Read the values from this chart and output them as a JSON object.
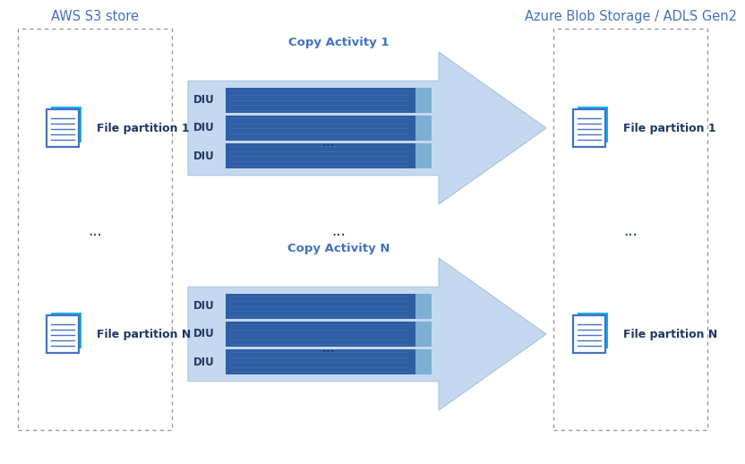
{
  "title_left": "AWS S3 store",
  "title_right": "Azure Blob Storage / ADLS Gen2",
  "copy_activity_1": "Copy Activity 1",
  "copy_activity_n": "Copy Activity N",
  "file_partition_1": "File partition 1",
  "file_partition_n": "File partition N",
  "ellipsis": "...",
  "diu_label": "DIU",
  "bg_color": "#ffffff",
  "arrow_fill": "#c5d8f0",
  "arrow_edge": "#a8c4e0",
  "bar_light": "#7bafd4",
  "bar_dark": "#2e5fa3",
  "bar_lines": "#1e3f7a",
  "dashed_color": "#999999",
  "text_blue": "#4472c4",
  "text_dark": "#1f3864",
  "icon_front": "#4472c4",
  "icon_back": "#00b0f0",
  "title_fs": 10.5,
  "label_fs": 9,
  "diu_fs": 8.5,
  "ellipsis_fs": 11
}
